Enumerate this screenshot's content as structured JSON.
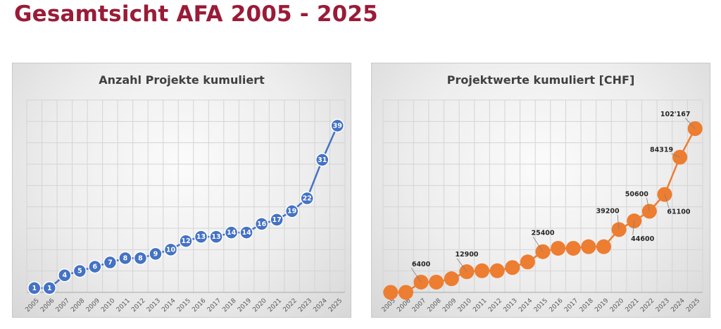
{
  "page": {
    "title": "Gesamtsicht AFA 2005 - 2025"
  },
  "chart_data": [
    {
      "type": "line",
      "title": "Anzahl Projekte kumuliert",
      "x": [
        "2005",
        "2006",
        "2007",
        "2008",
        "2009",
        "2010",
        "2011",
        "2012",
        "2013",
        "2014",
        "2015",
        "2016",
        "2017",
        "2018",
        "2019",
        "2020",
        "2021",
        "2022",
        "2023",
        "2024",
        "2025"
      ],
      "series": [
        {
          "values": [
            1,
            1,
            4,
            5,
            6,
            7,
            8,
            8,
            9,
            10,
            12,
            13,
            13,
            14,
            14,
            16,
            17,
            19,
            22,
            31,
            39
          ],
          "labels": [
            "1",
            "1",
            "4",
            "5",
            "6",
            "7",
            "8",
            "8",
            "9",
            "10",
            "12",
            "13",
            "13",
            "14",
            "14",
            "16",
            "17",
            "19",
            "22",
            "31",
            "39"
          ],
          "color": "#4472c4"
        }
      ],
      "ylim": [
        0,
        45
      ],
      "grid": true,
      "legend": "none"
    },
    {
      "type": "line",
      "title": "Projektwerte kumuliert [CHF]",
      "x": [
        "2005",
        "2006",
        "2007",
        "2008",
        "2009",
        "2010",
        "2011",
        "2012",
        "2013",
        "2014",
        "2015",
        "2016",
        "2017",
        "2018",
        "2019",
        "2020",
        "2021",
        "2022",
        "2023",
        "2024",
        "2025"
      ],
      "series": [
        {
          "values": [
            0,
            0,
            6400,
            6400,
            8500,
            12900,
            13500,
            13500,
            15500,
            19000,
            25400,
            27500,
            27500,
            28500,
            28500,
            39200,
            44600,
            50600,
            61100,
            84319,
            102167
          ],
          "color": "#ed7d31"
        }
      ],
      "data_labels": [
        {
          "x": "2007",
          "text": "6400"
        },
        {
          "x": "2010",
          "text": "12900"
        },
        {
          "x": "2015",
          "text": "25400"
        },
        {
          "x": "2020",
          "text": "39200"
        },
        {
          "x": "2021",
          "text": "44600"
        },
        {
          "x": "2022",
          "text": "50600"
        },
        {
          "x": "2023",
          "text": "61100"
        },
        {
          "x": "2024",
          "text": "84319"
        },
        {
          "x": "2025",
          "text": "102'167"
        }
      ],
      "ylim": [
        0,
        120000
      ],
      "grid": true,
      "legend": "none"
    }
  ]
}
